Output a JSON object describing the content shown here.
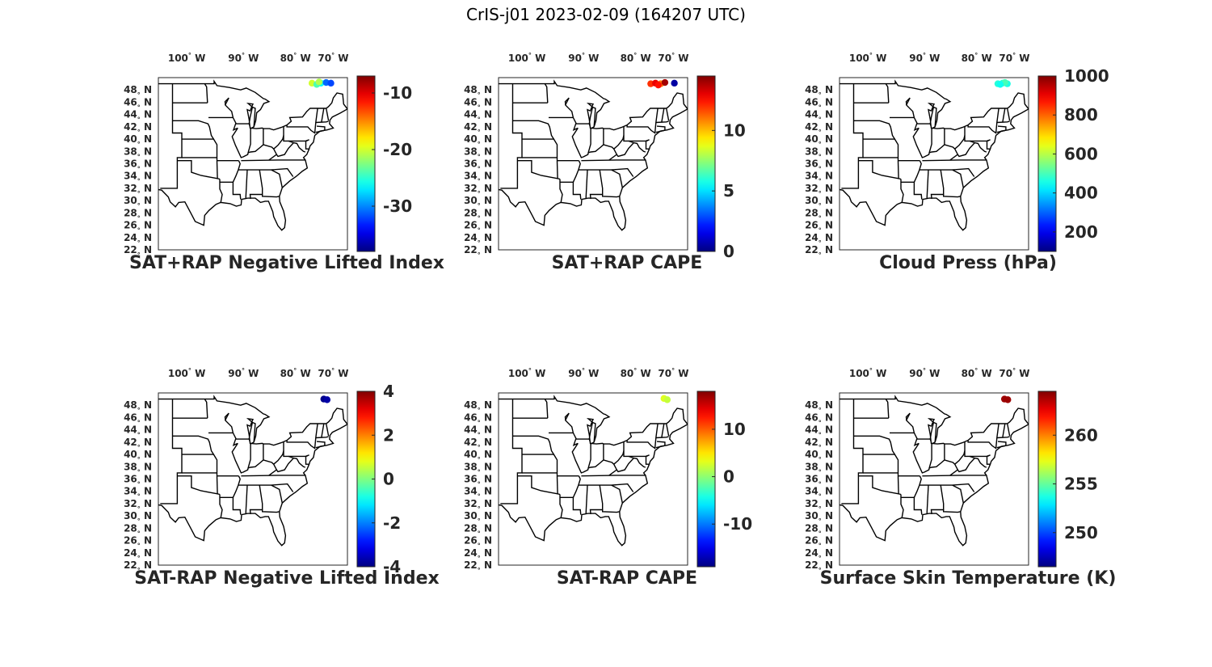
{
  "title": "CrIS-j01 2023-02-09 (164207 UTC)",
  "lon_ticks": [
    {
      "deg": "100",
      "dir": "W"
    },
    {
      "deg": "90",
      "dir": "W"
    },
    {
      "deg": "80",
      "dir": "W"
    },
    {
      "deg": "70",
      "dir": "W"
    }
  ],
  "lat_ticks": [
    {
      "deg": "48",
      "dir": "N"
    },
    {
      "deg": "46",
      "dir": "N"
    },
    {
      "deg": "44",
      "dir": "N"
    },
    {
      "deg": "42",
      "dir": "N"
    },
    {
      "deg": "40",
      "dir": "N"
    },
    {
      "deg": "38",
      "dir": "N"
    },
    {
      "deg": "36",
      "dir": "N"
    },
    {
      "deg": "34",
      "dir": "N"
    },
    {
      "deg": "32",
      "dir": "N"
    },
    {
      "deg": "30",
      "dir": "N"
    },
    {
      "deg": "28",
      "dir": "N"
    },
    {
      "deg": "26",
      "dir": "N"
    },
    {
      "deg": "24",
      "dir": "N"
    },
    {
      "deg": "22",
      "dir": "N"
    }
  ],
  "colormap": "jet",
  "panels": [
    {
      "title": "SAT+RAP Negative Lifted Index",
      "clim": [
        -38,
        -7
      ],
      "ticks": [
        "-10",
        "-20",
        "-30"
      ],
      "tick_values": [
        -10,
        -20,
        -30
      ],
      "points": [
        {
          "lon": -74.5,
          "lat": 49.1,
          "v": -20
        },
        {
          "lon": -73.5,
          "lat": 48.9,
          "v": -24
        },
        {
          "lon": -72.6,
          "lat": 49.1,
          "v": -26
        },
        {
          "lon": -71.5,
          "lat": 49.2,
          "v": -31
        },
        {
          "lon": -70.5,
          "lat": 49.1,
          "v": -32
        },
        {
          "lon": -73.0,
          "lat": 49.3,
          "v": -21
        }
      ]
    },
    {
      "title": "SAT+RAP CAPE",
      "clim": [
        0,
        14.5
      ],
      "ticks": [
        "10",
        "5",
        "0"
      ],
      "tick_values": [
        10,
        5,
        0
      ],
      "points": [
        {
          "lon": -74.8,
          "lat": 49.0,
          "v": 12
        },
        {
          "lon": -73.8,
          "lat": 49.1,
          "v": 13
        },
        {
          "lon": -72.7,
          "lat": 49.0,
          "v": 11
        },
        {
          "lon": -71.8,
          "lat": 49.2,
          "v": 14
        },
        {
          "lon": -69.8,
          "lat": 49.1,
          "v": 0.5
        },
        {
          "lon": -73.2,
          "lat": 48.8,
          "v": 12.5
        }
      ]
    },
    {
      "title": "Cloud Press (hPa)",
      "clim": [
        100,
        1000
      ],
      "ticks": [
        "1000",
        "800",
        "600",
        "400",
        "200"
      ],
      "tick_values": [
        1000,
        800,
        600,
        400,
        200
      ],
      "points": [
        {
          "lon": -73.5,
          "lat": 49.0,
          "v": 470
        },
        {
          "lon": -72.5,
          "lat": 49.1,
          "v": 480
        },
        {
          "lon": -71.5,
          "lat": 49.0,
          "v": 460
        },
        {
          "lon": -72.0,
          "lat": 49.2,
          "v": 500
        },
        {
          "lon": -73.0,
          "lat": 48.9,
          "v": 450
        }
      ]
    },
    {
      "title": "SAT-RAP Negative Lifted Index",
      "clim": [
        -4,
        4
      ],
      "ticks": [
        "4",
        "2",
        "0",
        "-2",
        "-4"
      ],
      "tick_values": [
        4,
        2,
        0,
        -2,
        -4
      ],
      "points": [
        {
          "lon": -72.0,
          "lat": 49.0,
          "v": -3.9
        },
        {
          "lon": -71.3,
          "lat": 48.9,
          "v": -3.7
        }
      ]
    },
    {
      "title": "SAT-RAP CAPE",
      "clim": [
        -19,
        18
      ],
      "ticks": [
        "10",
        "0",
        "-10"
      ],
      "tick_values": [
        10,
        0,
        -10
      ],
      "points": [
        {
          "lon": -72.0,
          "lat": 49.1,
          "v": 3
        },
        {
          "lon": -71.3,
          "lat": 48.9,
          "v": 2
        }
      ]
    },
    {
      "title": "Surface Skin Temperature (K)",
      "clim": [
        246.5,
        264.5
      ],
      "ticks": [
        "260",
        "255",
        "250"
      ],
      "tick_values": [
        260,
        255,
        250
      ],
      "points": [
        {
          "lon": -72.1,
          "lat": 49.0,
          "v": 264
        },
        {
          "lon": -71.4,
          "lat": 48.9,
          "v": 264
        }
      ]
    }
  ]
}
